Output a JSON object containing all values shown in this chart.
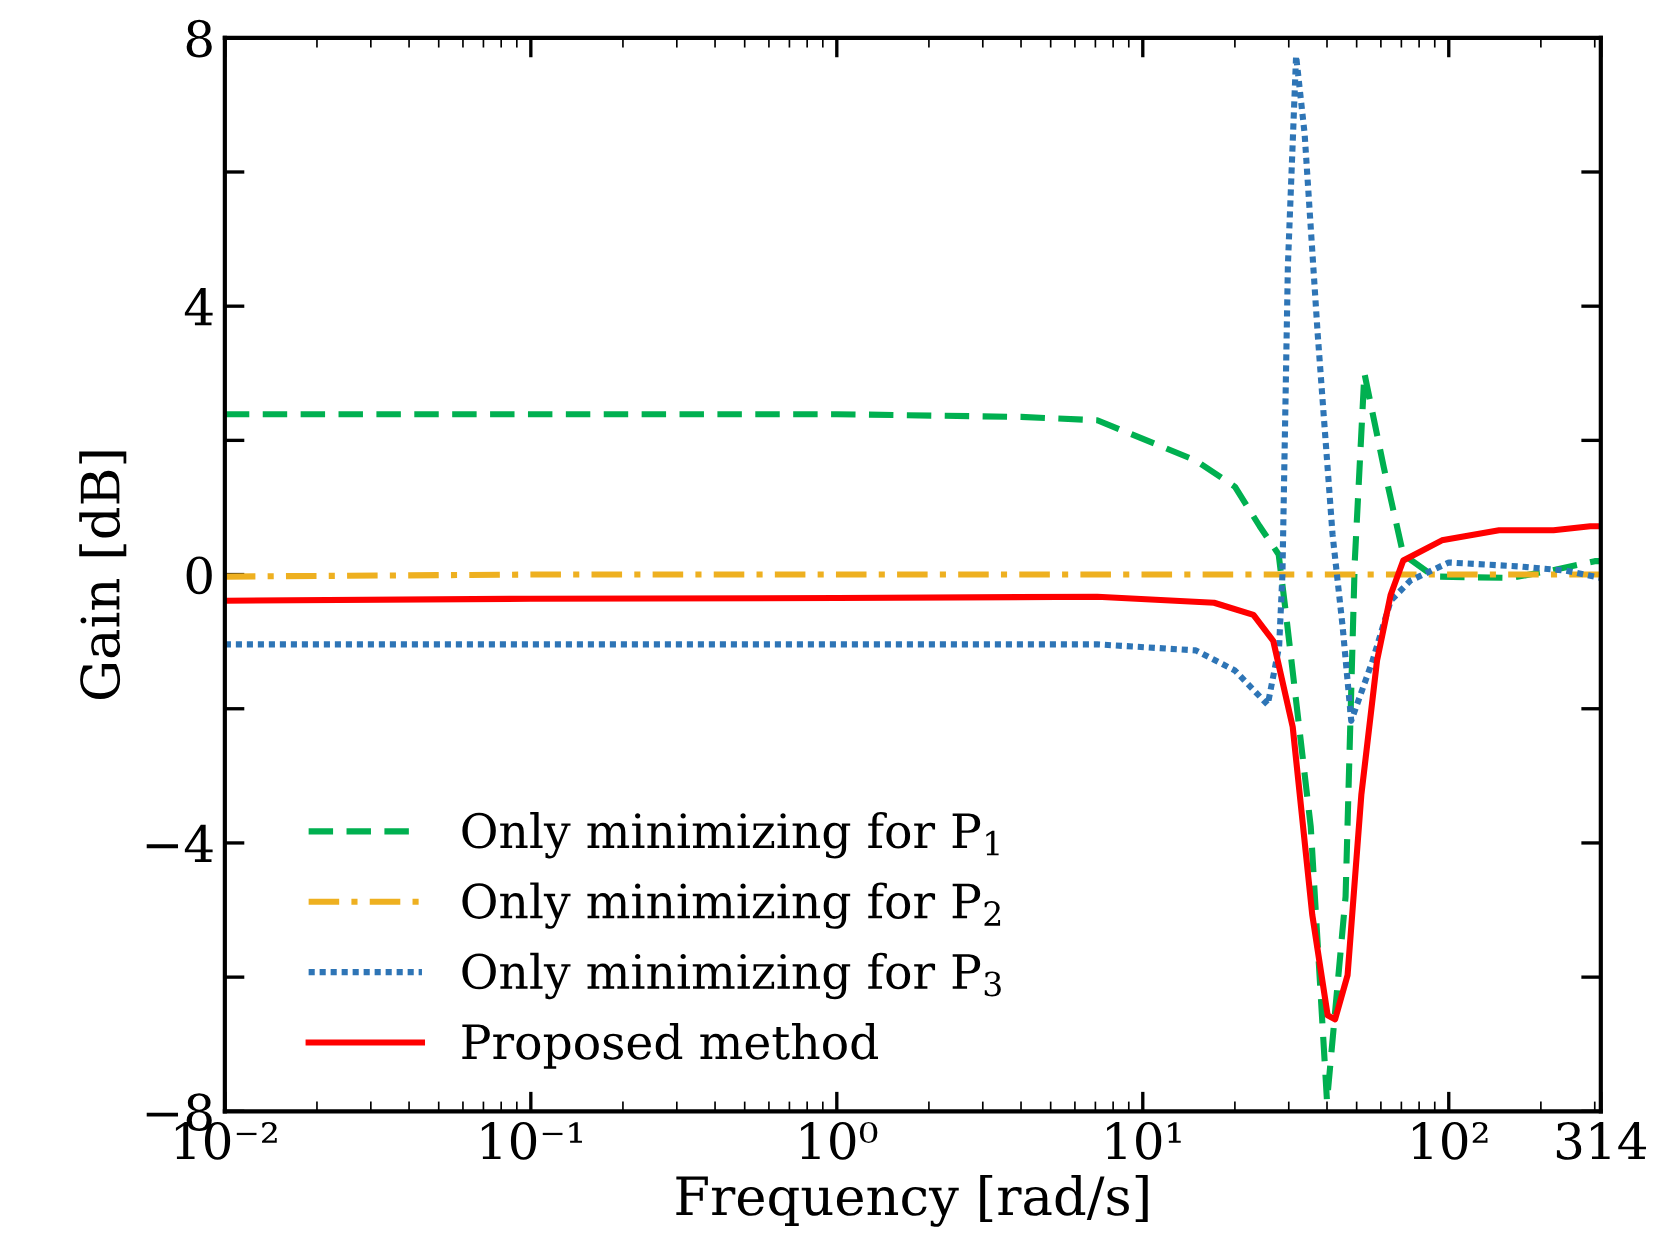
{
  "chart_data": {
    "type": "line",
    "xlabel": "Frequency [rad/s]",
    "ylabel": "Gain [dB]",
    "log": "x",
    "xlim": [
      0.01,
      314
    ],
    "ylim": [
      -8,
      8
    ],
    "xticks": [
      {
        "value": 0.01,
        "label": "10⁻²"
      },
      {
        "value": 0.1,
        "label": "10⁻¹"
      },
      {
        "value": 1,
        "label": "10⁰"
      },
      {
        "value": 10,
        "label": "10¹"
      },
      {
        "value": 100,
        "label": "10²"
      },
      314
    ],
    "yticks": [
      {
        "value": -8,
        "label": "−8"
      },
      {
        "value": -6,
        "label": null
      },
      {
        "value": -4,
        "label": "−4"
      },
      {
        "value": -2,
        "label": null
      },
      0,
      {
        "value": 2,
        "label": null
      },
      4,
      {
        "value": 6,
        "label": null
      },
      8
    ],
    "grid": false,
    "legend": "bottom left",
    "series": [
      {
        "name": "Only minimizing for P$_{1}$",
        "color": "#00b050",
        "line_style": "dashed",
        "x": [
          0.01,
          1,
          4,
          7.1,
          14.9,
          20,
          24.1,
          27.8,
          29.4,
          35.4,
          40,
          46,
          49.3,
          53,
          61.3,
          71,
          89.5,
          160,
          216,
          300,
          314
        ],
        "values": [
          2.39,
          2.39,
          2.35,
          2.3,
          1.7,
          1.31,
          0.72,
          0.3,
          -0.6,
          -3.76,
          -7.85,
          -4.8,
          0.2,
          3.0,
          1.6,
          0.3,
          -0.03,
          -0.05,
          0.06,
          0.2,
          0.2
        ]
      },
      {
        "name": "Only minimizing for P$_{2}$",
        "color": "#eeb020",
        "line_style": "dashdot",
        "x": [
          0.01,
          0.1,
          314
        ],
        "values": [
          -0.03,
          0,
          0
        ]
      },
      {
        "name": "Only minimizing for P$_{3}$",
        "color": "#2e75b6",
        "line_style": "dotted",
        "x": [
          0.01,
          1,
          7.1,
          14.9,
          20,
          25.6,
          27.9,
          28.6,
          29.8,
          31.7,
          33.8,
          37.3,
          41.7,
          45,
          48,
          56.4,
          64.6,
          74.9,
          100,
          171,
          240,
          300,
          314
        ],
        "values": [
          -1.04,
          -1.04,
          -1.04,
          -1.13,
          -1.43,
          -1.94,
          -1.07,
          0,
          4.6,
          7.73,
          6.57,
          3.58,
          0.6,
          -0.78,
          -2.18,
          -1.28,
          -0.39,
          -0.09,
          0.18,
          0.12,
          0.06,
          -0.03,
          -0.05
        ]
      },
      {
        "name": "Proposed method",
        "color": "#ff0000",
        "line_style": "solid",
        "x": [
          0.01,
          0.1,
          1,
          7.1,
          17.1,
          23,
          26.7,
          30.9,
          35.8,
          40.2,
          42.5,
          46.7,
          51.8,
          58.3,
          64.6,
          71,
          95,
          146,
          220,
          290,
          314
        ],
        "values": [
          -0.39,
          -0.36,
          -0.35,
          -0.33,
          -0.42,
          -0.6,
          -0.99,
          -2.27,
          -5.07,
          -6.57,
          -6.63,
          -5.97,
          -3.28,
          -1.28,
          -0.3,
          0.21,
          0.51,
          0.66,
          0.66,
          0.72,
          0.72
        ]
      }
    ]
  }
}
